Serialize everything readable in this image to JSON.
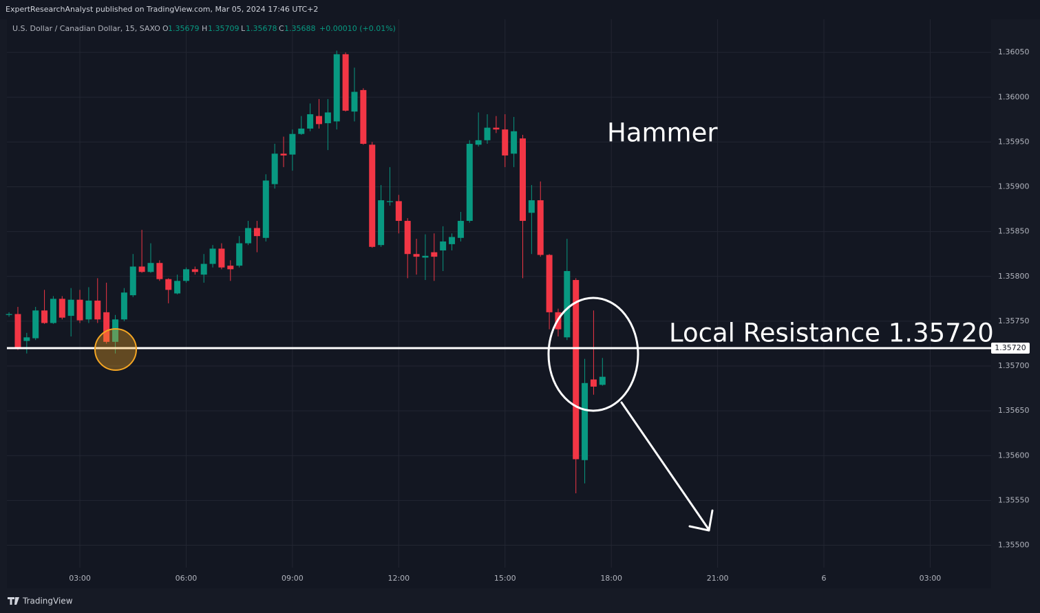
{
  "header": {
    "published": "ExpertResearchAnalyst published on TradingView.com, Mar 05, 2024 17:46 UTC+2",
    "symbol": "U.S. Dollar / Canadian Dollar, 15, SAXO",
    "ohlc_labels": [
      "O",
      "H",
      "L",
      "C"
    ],
    "change": "+0.00010 (+0.01%)"
  },
  "footer": {
    "brand": "TradingView"
  },
  "chart_data": {
    "type": "candlestick",
    "up_color": "#089981",
    "down_color": "#f23645",
    "grid": true,
    "x": [
      1,
      1.25,
      1.5,
      1.75,
      2,
      2.25,
      2.5,
      2.75,
      3,
      3.25,
      3.5,
      3.75,
      4,
      4.25,
      4.5,
      4.75,
      5,
      5.25,
      5.5,
      5.75,
      6,
      6.25,
      6.5,
      6.75,
      7,
      7.25,
      7.5,
      7.75,
      8,
      8.25,
      8.5,
      8.75,
      9,
      9.25,
      9.5,
      9.75,
      10,
      10.25,
      10.5,
      10.75,
      11,
      11.25,
      11.5,
      11.75,
      12,
      12.25,
      12.5,
      12.75,
      13,
      13.25,
      13.5,
      13.75,
      14,
      14.25,
      14.5,
      14.75,
      15,
      15.25,
      15.5,
      15.75,
      16,
      16.25,
      16.5,
      16.75,
      17,
      17.25,
      17.5,
      17.75
    ],
    "open": [
      1.35757,
      1.35758,
      1.35728,
      1.35731,
      1.35762,
      1.35748,
      1.35775,
      1.35756,
      1.35774,
      1.35752,
      1.35773,
      1.3576,
      1.35727,
      1.35752,
      1.35779,
      1.35811,
      1.35805,
      1.35815,
      1.35797,
      1.35781,
      1.35795,
      1.35808,
      1.35802,
      1.35814,
      1.35831,
      1.35812,
      1.35812,
      1.35837,
      1.35854,
      1.35843,
      1.35903,
      1.35937,
      1.35936,
      1.35959,
      1.35965,
      1.35979,
      1.35971,
      1.35973,
      1.36048,
      1.35984,
      1.36008,
      1.35947,
      1.35835,
      1.35883,
      1.35884,
      1.35862,
      1.35825,
      1.35821,
      1.35827,
      1.35829,
      1.35836,
      1.35843,
      1.35862,
      1.35947,
      1.35952,
      1.35966,
      1.35964,
      1.35937,
      1.35954,
      1.35871,
      1.35885,
      1.35824,
      1.3576,
      1.35732,
      1.35796,
      1.35595,
      1.35685,
      1.35679
    ],
    "high": [
      1.3576,
      1.35766,
      1.35737,
      1.35766,
      1.35785,
      1.35778,
      1.35778,
      1.35787,
      1.35785,
      1.35788,
      1.35798,
      1.35793,
      1.35757,
      1.35787,
      1.35825,
      1.35852,
      1.35837,
      1.35818,
      1.35798,
      1.35802,
      1.3581,
      1.35811,
      1.35825,
      1.35835,
      1.35837,
      1.35818,
      1.35845,
      1.35862,
      1.35862,
      1.35914,
      1.35948,
      1.35956,
      1.35964,
      1.35979,
      1.35993,
      1.35998,
      1.35998,
      1.36052,
      1.3605,
      1.36033,
      1.3601,
      1.3595,
      1.35902,
      1.35922,
      1.35891,
      1.35865,
      1.35842,
      1.35847,
      1.35848,
      1.35856,
      1.35848,
      1.35872,
      1.35952,
      1.35983,
      1.35981,
      1.35979,
      1.35981,
      1.35978,
      1.35958,
      1.35902,
      1.35906,
      1.35825,
      1.35764,
      1.35842,
      1.35798,
      1.35708,
      1.35762,
      1.35709
    ],
    "low": [
      1.35755,
      1.35718,
      1.35714,
      1.35729,
      1.35747,
      1.35747,
      1.35752,
      1.35733,
      1.35748,
      1.35748,
      1.35748,
      1.35725,
      1.35714,
      1.3575,
      1.35777,
      1.35804,
      1.35804,
      1.35795,
      1.3577,
      1.3578,
      1.35793,
      1.35802,
      1.35793,
      1.3581,
      1.35808,
      1.35795,
      1.3581,
      1.35835,
      1.35827,
      1.35839,
      1.35898,
      1.35922,
      1.35918,
      1.35958,
      1.35962,
      1.35965,
      1.35941,
      1.35964,
      1.35984,
      1.35973,
      1.35947,
      1.35832,
      1.35833,
      1.35879,
      1.35848,
      1.35798,
      1.35802,
      1.35796,
      1.35795,
      1.35806,
      1.35829,
      1.35839,
      1.3586,
      1.35945,
      1.35948,
      1.3596,
      1.35922,
      1.35922,
      1.35798,
      1.35825,
      1.35822,
      1.35741,
      1.35733,
      1.35729,
      1.35558,
      1.35569,
      1.35668,
      1.35678
    ],
    "close": [
      1.35758,
      1.35719,
      1.35732,
      1.35762,
      1.35748,
      1.35775,
      1.35754,
      1.35774,
      1.35751,
      1.35773,
      1.35752,
      1.35727,
      1.35752,
      1.35782,
      1.35811,
      1.35805,
      1.35815,
      1.35797,
      1.35785,
      1.35795,
      1.35808,
      1.35805,
      1.35814,
      1.35831,
      1.3581,
      1.35808,
      1.35837,
      1.35854,
      1.35845,
      1.35907,
      1.35937,
      1.35935,
      1.35959,
      1.35965,
      1.35981,
      1.3597,
      1.35983,
      1.36048,
      1.35985,
      1.36006,
      1.35948,
      1.35833,
      1.35885,
      1.35884,
      1.35862,
      1.35825,
      1.35822,
      1.35823,
      1.35822,
      1.35839,
      1.35844,
      1.35862,
      1.35948,
      1.35952,
      1.35966,
      1.35964,
      1.35935,
      1.35962,
      1.35862,
      1.35885,
      1.35824,
      1.3576,
      1.35741,
      1.35806,
      1.35596,
      1.35681,
      1.35677,
      1.35688
    ],
    "xlim": [
      0.94,
      28.72
    ],
    "xticks": [
      {
        "value": 3,
        "label": "03:00"
      },
      {
        "value": 6,
        "label": "06:00"
      },
      {
        "value": 9,
        "label": "09:00"
      },
      {
        "value": 12,
        "label": "12:00"
      },
      {
        "value": 15,
        "label": "15:00"
      },
      {
        "value": 18,
        "label": "18:00"
      },
      {
        "value": 21,
        "label": "21:00"
      },
      {
        "value": 24,
        "label": "6"
      },
      {
        "value": 27,
        "label": "03:00"
      }
    ],
    "ylim": [
      1.35452,
      1.36087
    ],
    "yticks": [
      {
        "value": 1.355,
        "label": "1.35500"
      },
      {
        "value": 1.3555,
        "label": "1.35550"
      },
      {
        "value": 1.356,
        "label": "1.35600"
      },
      {
        "value": 1.3565,
        "label": "1.35650"
      },
      {
        "value": 1.357,
        "label": "1.35700"
      },
      {
        "value": 1.3575,
        "label": "1.35750"
      },
      {
        "value": 1.358,
        "label": "1.35800"
      },
      {
        "value": 1.3585,
        "label": "1.35850"
      },
      {
        "value": 1.359,
        "label": "1.35900"
      },
      {
        "value": 1.3595,
        "label": "1.35950"
      },
      {
        "value": 1.36,
        "label": "1.36000"
      },
      {
        "value": 1.3605,
        "label": "1.36050"
      }
    ],
    "hline": {
      "value": 1.3572,
      "label": "1.35720",
      "color": "#ffffff"
    },
    "annotations": [
      "Hammer",
      "Local Resistance 1.35720"
    ]
  }
}
